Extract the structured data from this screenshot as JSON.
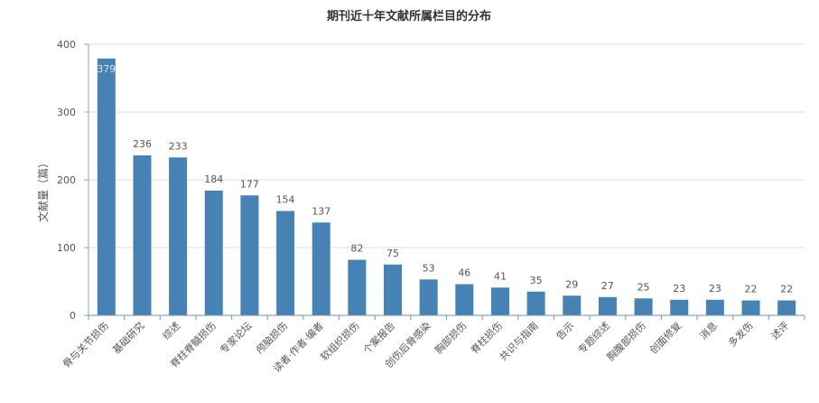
{
  "chart_data": {
    "type": "bar",
    "title": "期刊近十年文献所属栏目的分布",
    "xlabel": "",
    "ylabel": "文献量（篇）",
    "ylim": [
      0,
      400
    ],
    "yticks": [
      0,
      100,
      200,
      300,
      400
    ],
    "grid": true,
    "bar_color": "#4682b4",
    "categories": [
      "骨与关节损伤",
      "基础研究",
      "综述",
      "脊柱脊髓损伤",
      "专家论坛",
      "颅脑损伤",
      "读者·作者·编者",
      "软组织损伤",
      "个案报告",
      "创伤后骨感染",
      "胸部损伤",
      "脊柱损伤",
      "共识与指南",
      "告示",
      "专题综述",
      "胸腹部损伤",
      "创面修复",
      "消息",
      "多发伤",
      "述评"
    ],
    "values": [
      379,
      236,
      233,
      184,
      177,
      154,
      137,
      82,
      75,
      53,
      46,
      41,
      35,
      29,
      27,
      25,
      23,
      23,
      22,
      22
    ]
  }
}
